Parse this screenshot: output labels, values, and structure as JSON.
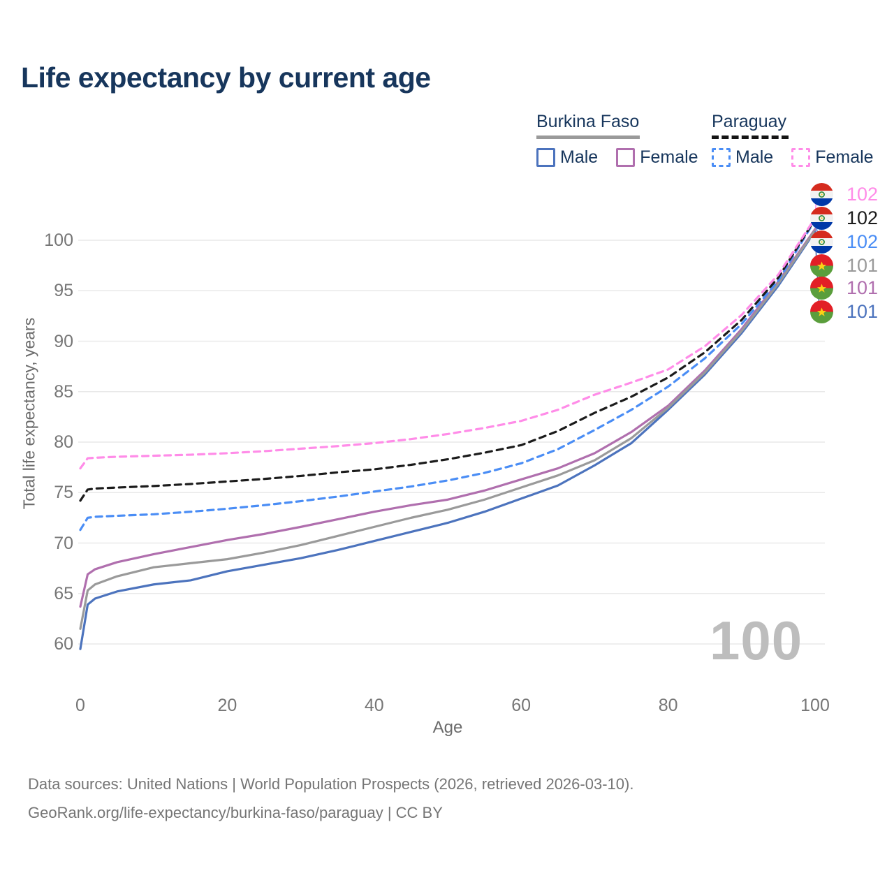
{
  "title": "Life expectancy by current age",
  "legend": {
    "groups": [
      {
        "name": "Burkina Faso",
        "line_style": "solid",
        "underline_color": "#9a9a9a",
        "items": [
          {
            "label": "Male",
            "color": "#4c73bd"
          },
          {
            "label": "Female",
            "color": "#b06fae"
          }
        ]
      },
      {
        "name": "Paraguay",
        "line_style": "dashed",
        "underline_color": "#141414",
        "items": [
          {
            "label": "Male",
            "color": "#4a8df5"
          },
          {
            "label": "Female",
            "color": "#ff8ce8"
          }
        ]
      }
    ]
  },
  "watermark": "100",
  "footer": {
    "line1": "Data sources: United Nations | World Population Prospects (2026, retrieved 2026-03-10).",
    "line2": "GeoRank.org/life-expectancy/burkina-faso/paraguay | CC BY"
  },
  "chart_data": {
    "type": "line",
    "title": "Life expectancy by current age",
    "xlabel": "Age",
    "ylabel": "Total life expectancy, years",
    "x_ticks": [
      0,
      20,
      40,
      60,
      80,
      100
    ],
    "y_ticks": [
      60,
      65,
      70,
      75,
      80,
      85,
      90,
      95,
      100
    ],
    "xlim": [
      0,
      100
    ],
    "ylim": [
      58.5,
      103.5
    ],
    "grid": "horizontal-only",
    "grid_color": "#e9e9e9",
    "ages": [
      0,
      1,
      2,
      5,
      10,
      15,
      20,
      25,
      30,
      35,
      40,
      45,
      50,
      55,
      60,
      65,
      70,
      75,
      80,
      85,
      90,
      95,
      100
    ],
    "series": [
      {
        "name": "Paraguay Female",
        "country": "Paraguay",
        "sex": "Female",
        "color": "#ff8ce8",
        "dash": "dashed",
        "flag": "paraguay",
        "end_label": "102",
        "values": [
          77.4,
          78.4,
          78.45,
          78.55,
          78.65,
          78.75,
          78.9,
          79.1,
          79.35,
          79.6,
          79.9,
          80.3,
          80.8,
          81.4,
          82.1,
          83.2,
          84.7,
          85.9,
          87.2,
          89.5,
          92.6,
          96.6,
          102.2
        ]
      },
      {
        "name": "Paraguay Both sexes",
        "country": "Paraguay",
        "sex": "Both",
        "color": "#1b1b1b",
        "dash": "dashed",
        "flag": "paraguay",
        "end_label": "102",
        "values": [
          74.2,
          75.3,
          75.4,
          75.5,
          75.65,
          75.85,
          76.1,
          76.35,
          76.65,
          77.0,
          77.3,
          77.75,
          78.3,
          78.95,
          79.7,
          81.1,
          82.9,
          84.5,
          86.4,
          88.9,
          92.1,
          96.3,
          102.1
        ]
      },
      {
        "name": "Paraguay Male",
        "country": "Paraguay",
        "sex": "Male",
        "color": "#4a8df5",
        "dash": "dashed",
        "flag": "paraguay",
        "end_label": "102",
        "values": [
          71.3,
          72.5,
          72.6,
          72.7,
          72.85,
          73.1,
          73.4,
          73.75,
          74.15,
          74.6,
          75.1,
          75.6,
          76.2,
          76.95,
          77.9,
          79.3,
          81.2,
          83.2,
          85.5,
          88.3,
          91.7,
          96.0,
          102.0
        ]
      },
      {
        "name": "Burkina Faso Both sexes",
        "country": "Burkina Faso",
        "sex": "Both",
        "color": "#9a9a9a",
        "dash": "solid",
        "flag": "burkina-faso",
        "end_label": "101",
        "values": [
          61.5,
          65.3,
          65.9,
          66.7,
          67.6,
          68.0,
          68.4,
          69.05,
          69.8,
          70.7,
          71.6,
          72.5,
          73.3,
          74.3,
          75.5,
          76.7,
          78.2,
          80.4,
          83.4,
          86.9,
          91.0,
          95.7,
          101.0
        ]
      },
      {
        "name": "Burkina Faso Female",
        "country": "Burkina Faso",
        "sex": "Female",
        "color": "#b06fae",
        "dash": "solid",
        "flag": "burkina-faso",
        "end_label": "101",
        "values": [
          63.7,
          66.9,
          67.4,
          68.1,
          68.9,
          69.6,
          70.3,
          70.9,
          71.6,
          72.35,
          73.1,
          73.75,
          74.3,
          75.2,
          76.3,
          77.4,
          78.9,
          81.0,
          83.6,
          87.1,
          91.2,
          95.9,
          101.1
        ]
      },
      {
        "name": "Burkina Faso Male",
        "country": "Burkina Faso",
        "sex": "Male",
        "color": "#4c73bd",
        "dash": "solid",
        "flag": "burkina-faso",
        "end_label": "101",
        "values": [
          59.5,
          63.9,
          64.5,
          65.2,
          65.9,
          66.3,
          67.2,
          67.85,
          68.5,
          69.3,
          70.2,
          71.1,
          72.0,
          73.1,
          74.4,
          75.7,
          77.7,
          79.9,
          83.2,
          86.7,
          90.8,
          95.5,
          100.9
        ]
      }
    ]
  }
}
